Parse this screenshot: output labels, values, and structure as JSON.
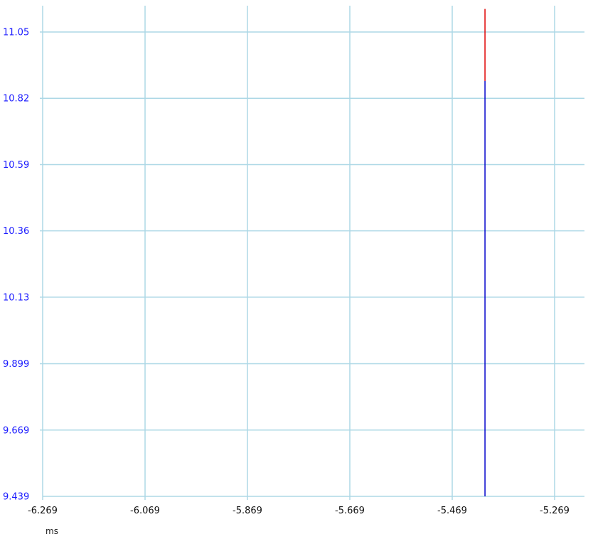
{
  "chart_data": {
    "type": "line",
    "title": "",
    "xlabel": "ms",
    "ylabel": "",
    "xlim": [
      -6.269,
      -5.269
    ],
    "ylim": [
      9.439,
      11.05
    ],
    "x_ticks": [
      "-6.269",
      "-6.069",
      "-5.869",
      "-5.669",
      "-5.469",
      "-5.269"
    ],
    "y_ticks": [
      "9.439",
      "9.669",
      "9.899",
      "10.13",
      "10.36",
      "10.59",
      "10.82",
      "11.05"
    ],
    "y_top": 11.13,
    "grid": true,
    "grid_color": "#add8e6",
    "ytick_color": "#1a1aff",
    "series": [
      {
        "color": "#e00000",
        "x": [
          -5.405,
          -5.405
        ],
        "y": [
          10.88,
          11.13
        ]
      },
      {
        "color": "#0000cc",
        "x": [
          -5.405,
          -5.405
        ],
        "y": [
          9.439,
          10.88
        ]
      }
    ]
  }
}
